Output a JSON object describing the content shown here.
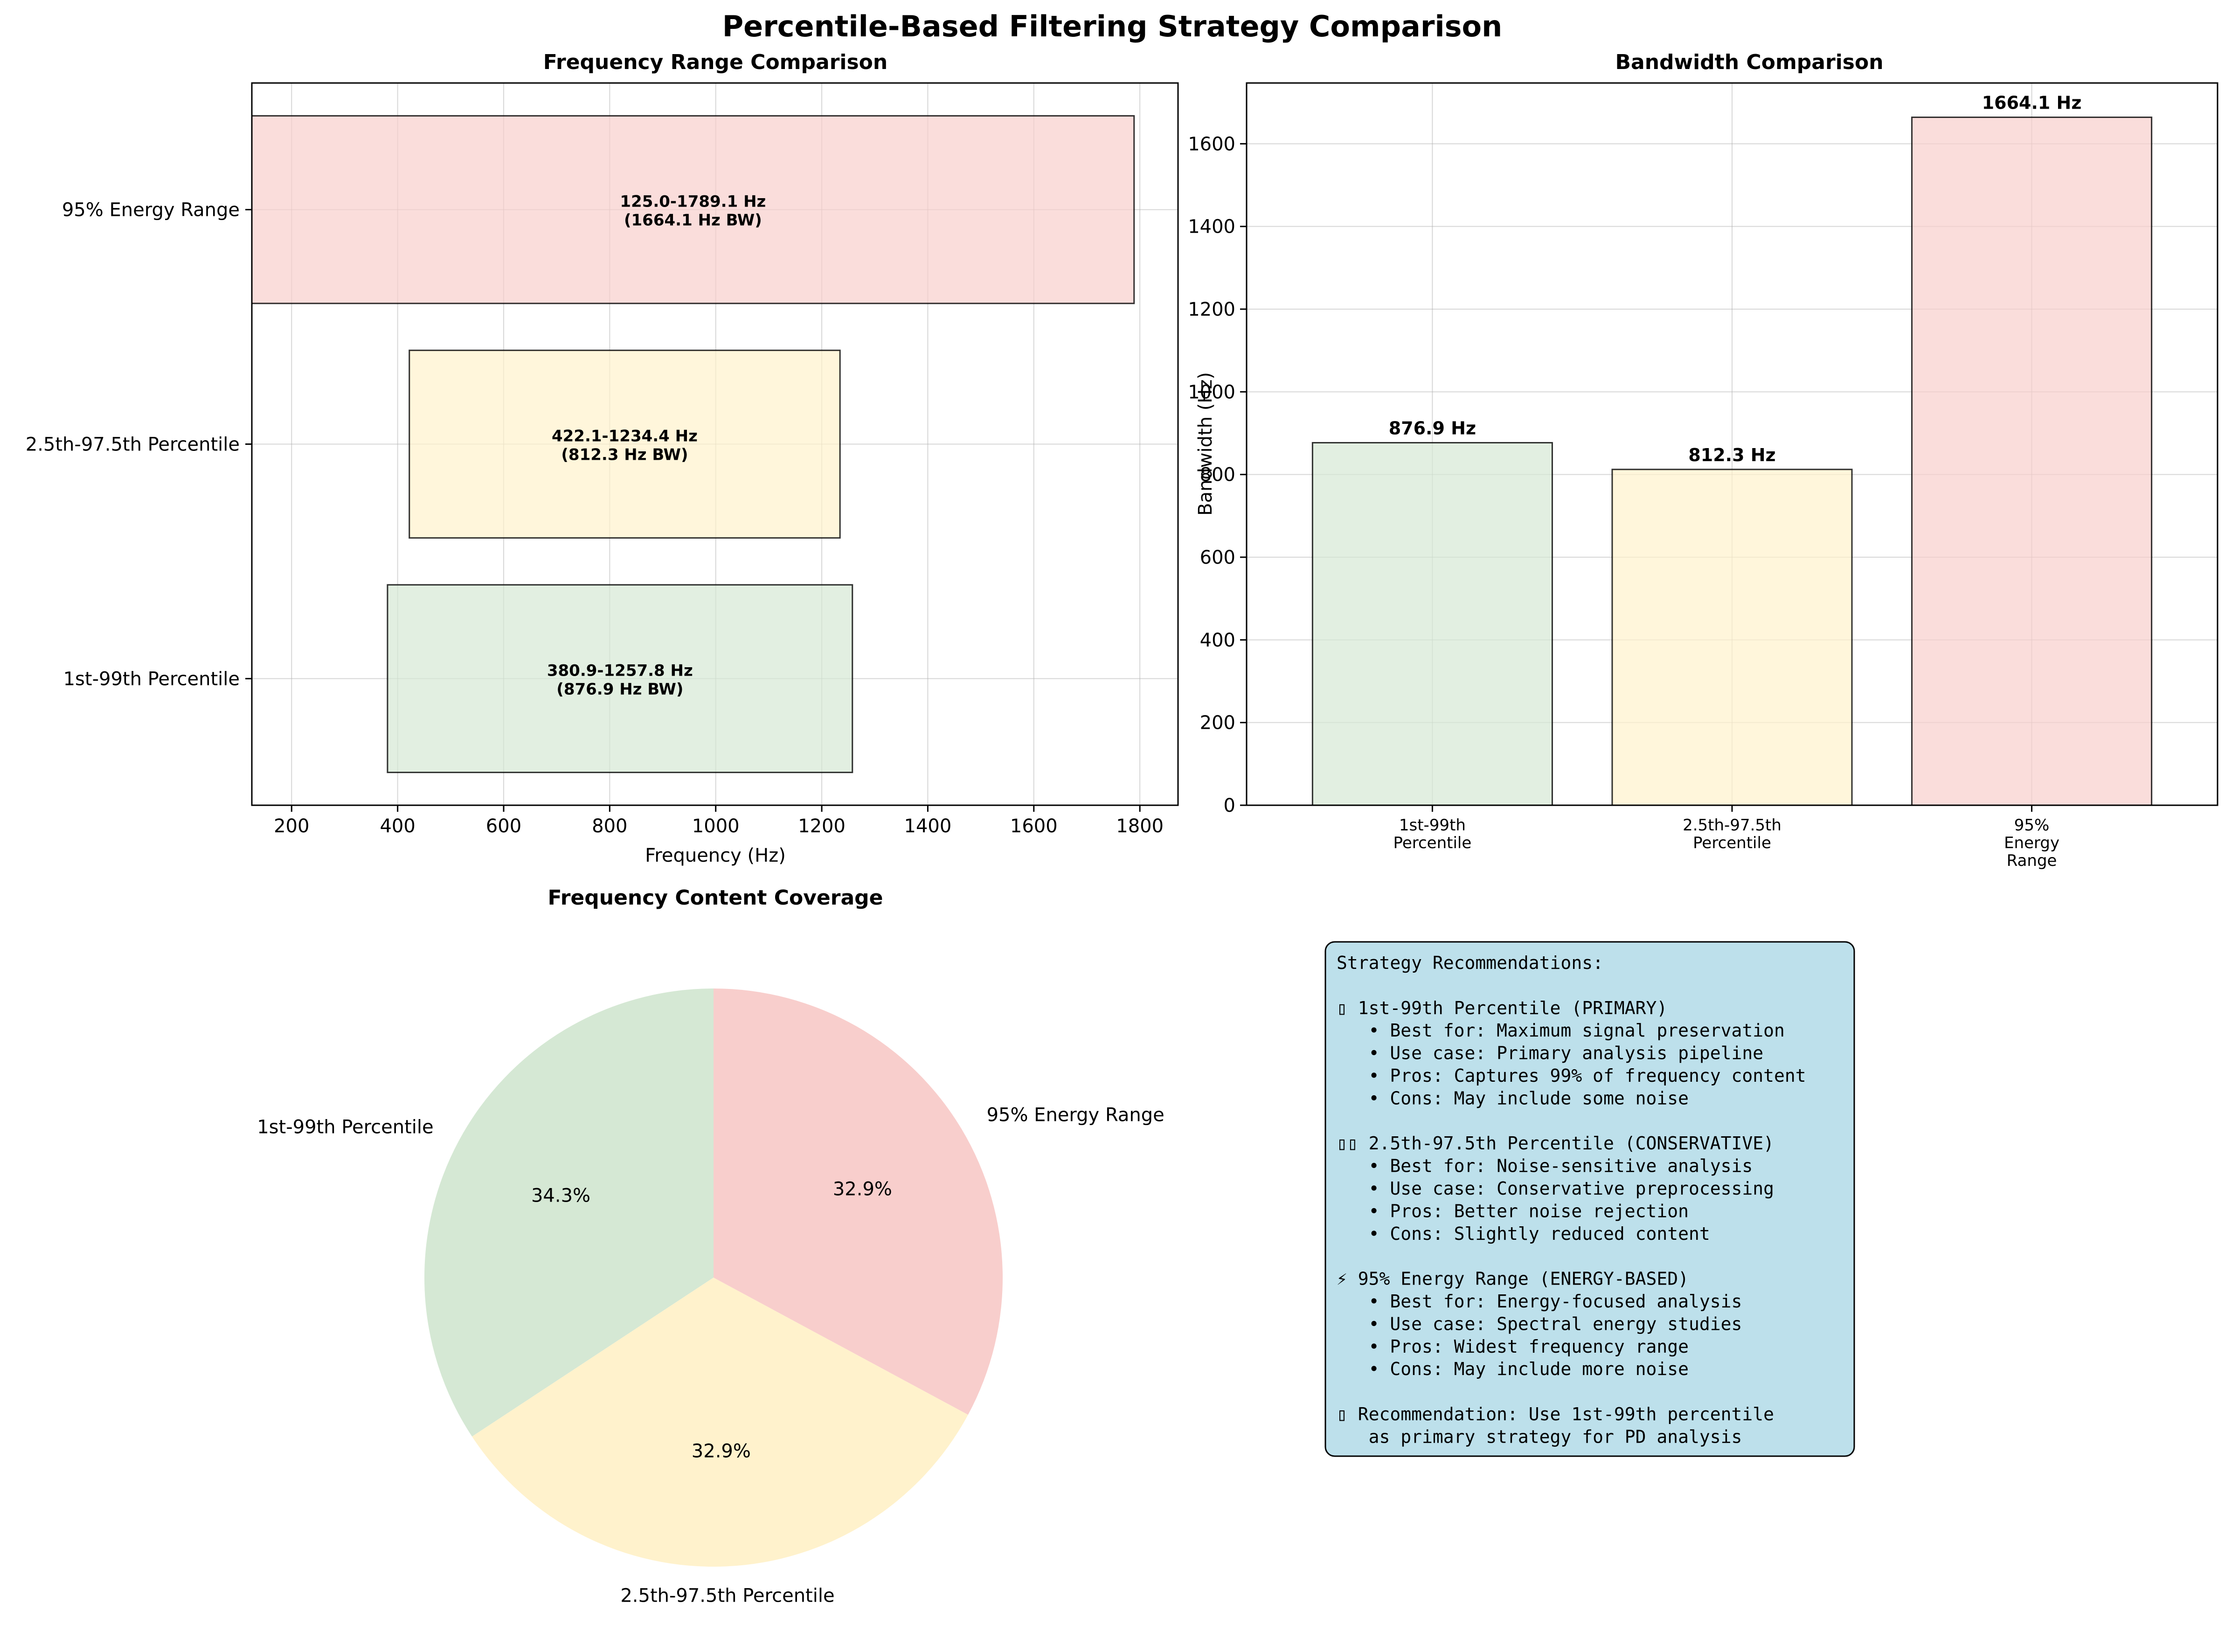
{
  "figure": {
    "title": "Percentile-Based Filtering Strategy Comparison"
  },
  "colors": {
    "green": "#d5e8d4",
    "yellow": "#fff2cc",
    "red": "#f8cecc",
    "box_fill": "#add8e6",
    "edge": "#000000",
    "grid": "#b0b0b0"
  },
  "chart_data": [
    {
      "id": "range",
      "type": "bar",
      "orientation": "horizontal",
      "title": "Frequency Range Comparison",
      "xlabel": "Frequency (Hz)",
      "ylabel": "",
      "xlim": [
        125,
        1872
      ],
      "xticks": [
        200,
        400,
        600,
        800,
        1000,
        1200,
        1400,
        1600,
        1800
      ],
      "grid": true,
      "categories": [
        "1st-99th Percentile",
        "2.5th-97.5th Percentile",
        "95% Energy Range"
      ],
      "ranges": [
        {
          "low": 380.9,
          "high": 1257.8,
          "label_line1": "380.9-1257.8 Hz",
          "label_line2": "(876.9 Hz BW)"
        },
        {
          "low": 422.1,
          "high": 1234.4,
          "label_line1": "422.1-1234.4 Hz",
          "label_line2": "(812.3 Hz BW)"
        },
        {
          "low": 125.0,
          "high": 1789.1,
          "label_line1": "125.0-1789.1 Hz",
          "label_line2": "(1664.1 Hz BW)"
        }
      ]
    },
    {
      "id": "bandwidth",
      "type": "bar",
      "title": "Bandwidth Comparison",
      "xlabel": "",
      "ylabel": "Bandwidth (Hz)",
      "ylim": [
        0,
        1747
      ],
      "yticks": [
        0,
        200,
        400,
        600,
        800,
        1000,
        1200,
        1400,
        1600
      ],
      "grid": true,
      "categories": [
        [
          "1st-99th",
          "Percentile"
        ],
        [
          "2.5th-97.5th",
          "Percentile"
        ],
        [
          "95%",
          "Energy",
          "Range"
        ]
      ],
      "values": [
        876.9,
        812.3,
        1664.1
      ],
      "value_labels": [
        "876.9 Hz",
        "812.3 Hz",
        "1664.1 Hz"
      ]
    },
    {
      "id": "coverage",
      "type": "pie",
      "title": "Frequency Content Coverage",
      "labels": [
        "1st-99th Percentile",
        "2.5th-97.5th Percentile",
        "95% Energy Range"
      ],
      "values": [
        34.3,
        32.9,
        32.9
      ],
      "pct_labels": [
        "34.3%",
        "32.9%",
        "32.9%"
      ],
      "start_angle_deg": 90,
      "direction": "counterclockwise"
    }
  ],
  "recommendations": {
    "lines": [
      "Strategy Recommendations:",
      "",
      "▯ 1st-99th Percentile (PRIMARY)",
      "   • Best for: Maximum signal preservation",
      "   • Use case: Primary analysis pipeline",
      "   • Pros: Captures 99% of frequency content",
      "   • Cons: May include some noise",
      "",
      "▯▯ 2.5th-97.5th Percentile (CONSERVATIVE)",
      "   • Best for: Noise-sensitive analysis",
      "   • Use case: Conservative preprocessing",
      "   • Pros: Better noise rejection",
      "   • Cons: Slightly reduced content",
      "",
      "⚡ 95% Energy Range (ENERGY-BASED)",
      "   • Best for: Energy-focused analysis",
      "   • Use case: Spectral energy studies",
      "   • Pros: Widest frequency range",
      "   • Cons: May include more noise",
      "",
      "▯ Recommendation: Use 1st-99th percentile",
      "   as primary strategy for PD analysis"
    ]
  }
}
